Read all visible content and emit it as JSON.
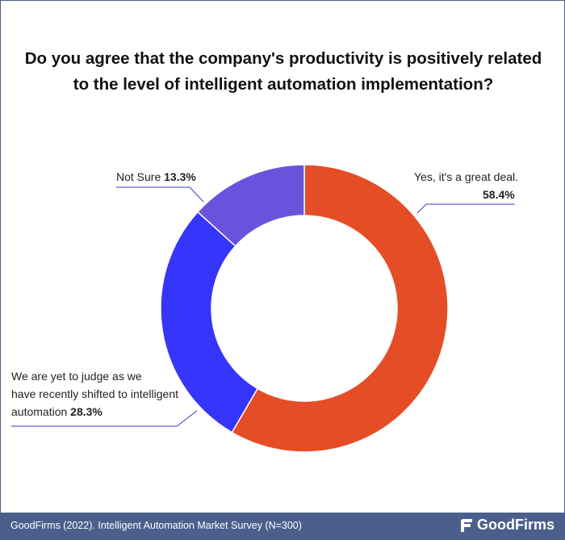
{
  "title": {
    "line1": "Do you agree that the company's productivity is positively related",
    "line2": "to the level of intelligent automation implementation?"
  },
  "chart_data": {
    "type": "donut",
    "slices": [
      {
        "label": "Yes, it's a great deal.",
        "value": 58.4,
        "value_label": "58.4%",
        "color": "#e44d26"
      },
      {
        "label_lines": [
          "We are yet to judge as we",
          "have recently shifted to intelligent",
          "automation"
        ],
        "value": 28.3,
        "value_label": "28.3%",
        "color": "#3535fb"
      },
      {
        "label": "Not Sure",
        "value": 13.3,
        "value_label": "13.3%",
        "color": "#6b52dd"
      }
    ]
  },
  "footer": {
    "source": "GoodFirms (2022). Intelligent Automation Market Survey (N=300)",
    "brand": "GoodFirms"
  },
  "colors": {
    "footer_bg": "#4a5f8c",
    "leader_line": "#3b3bd1"
  }
}
